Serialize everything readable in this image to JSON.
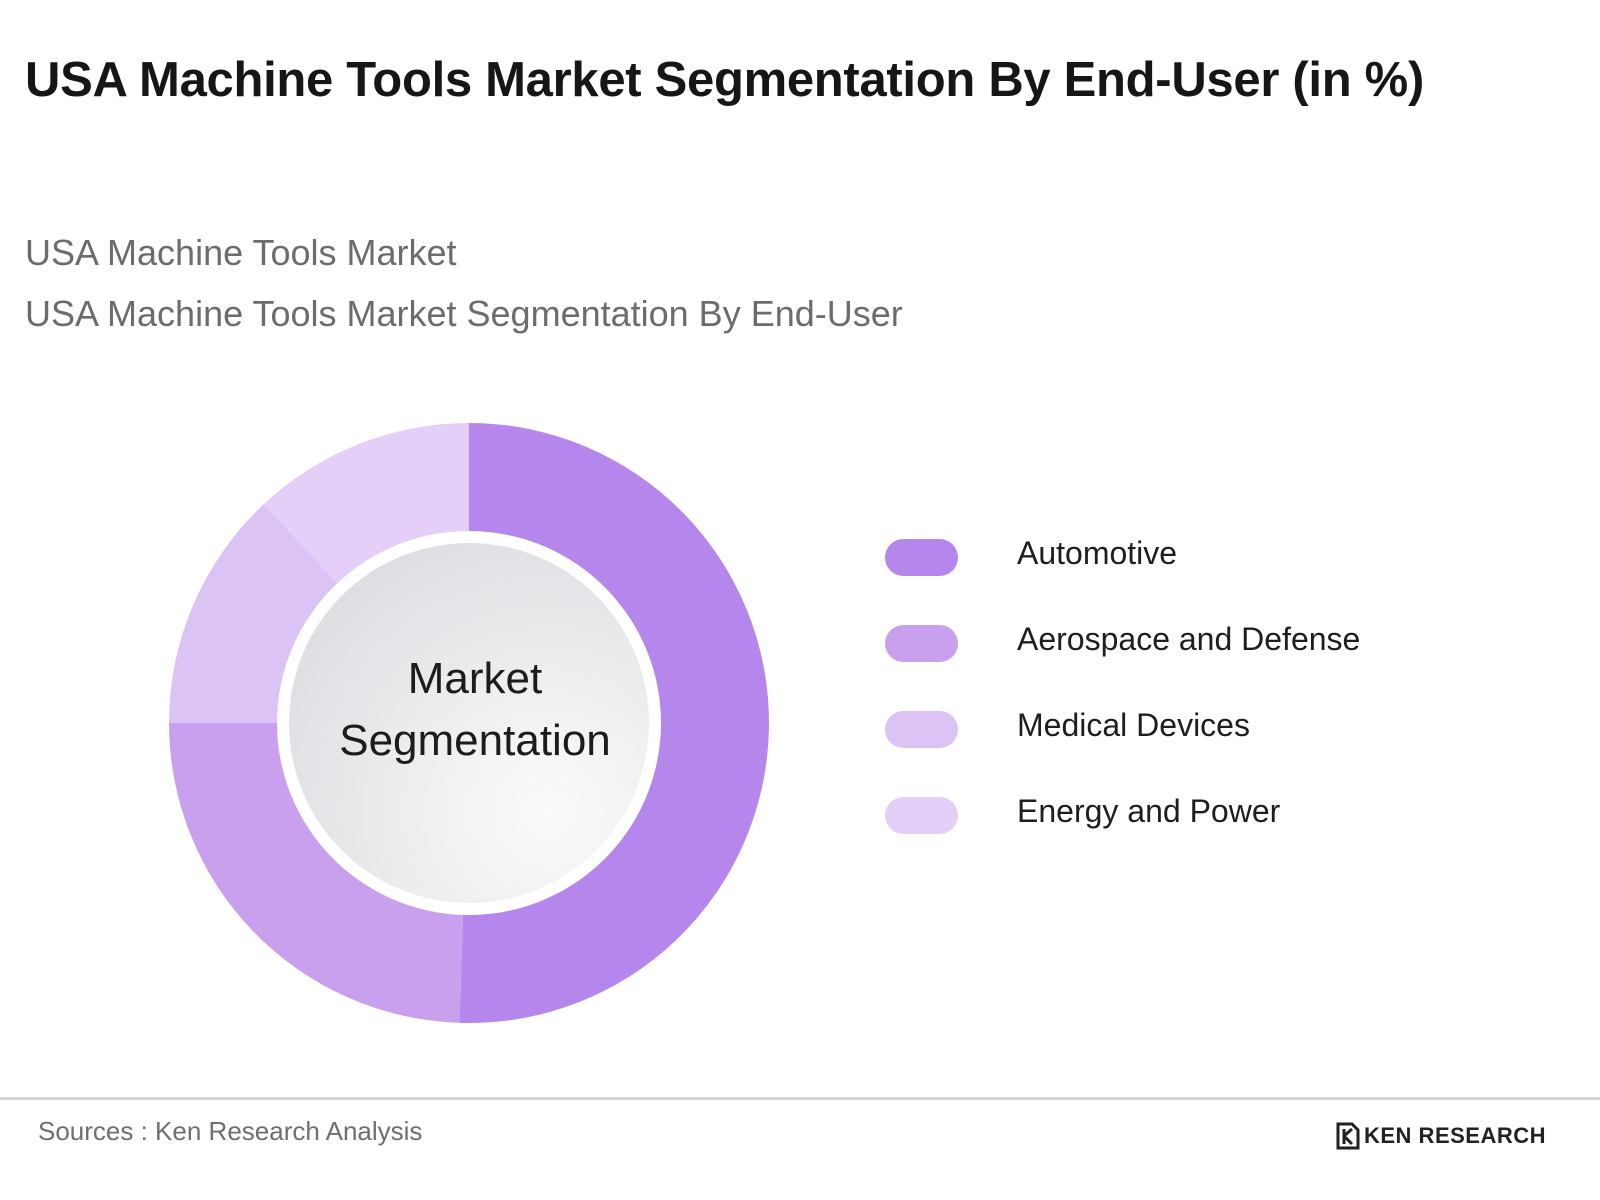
{
  "title": "USA Machine Tools Market Segmentation By End-User (in %)",
  "subtitle_1": "USA Machine Tools Market",
  "subtitle_2": "USA Machine Tools Market Segmentation By End-User",
  "center_label_line1": "Market",
  "center_label_line2": "Segmentation",
  "source": "Sources : Ken Research Analysis",
  "brand": "KEN RESEARCH",
  "brand_icon": "ken-research-logo",
  "chart_data": {
    "type": "pie",
    "variant": "donut",
    "categories": [
      "Automotive",
      "Aerospace and Defense",
      "Medical Devices",
      "Energy and Power"
    ],
    "values": [
      50.5,
      24.5,
      13,
      12
    ],
    "colors": [
      "#b586ec",
      "#c8a0ee",
      "#dcc3f6",
      "#e4cff8"
    ],
    "legend_position": "right",
    "start_angle": "top, clockwise"
  }
}
